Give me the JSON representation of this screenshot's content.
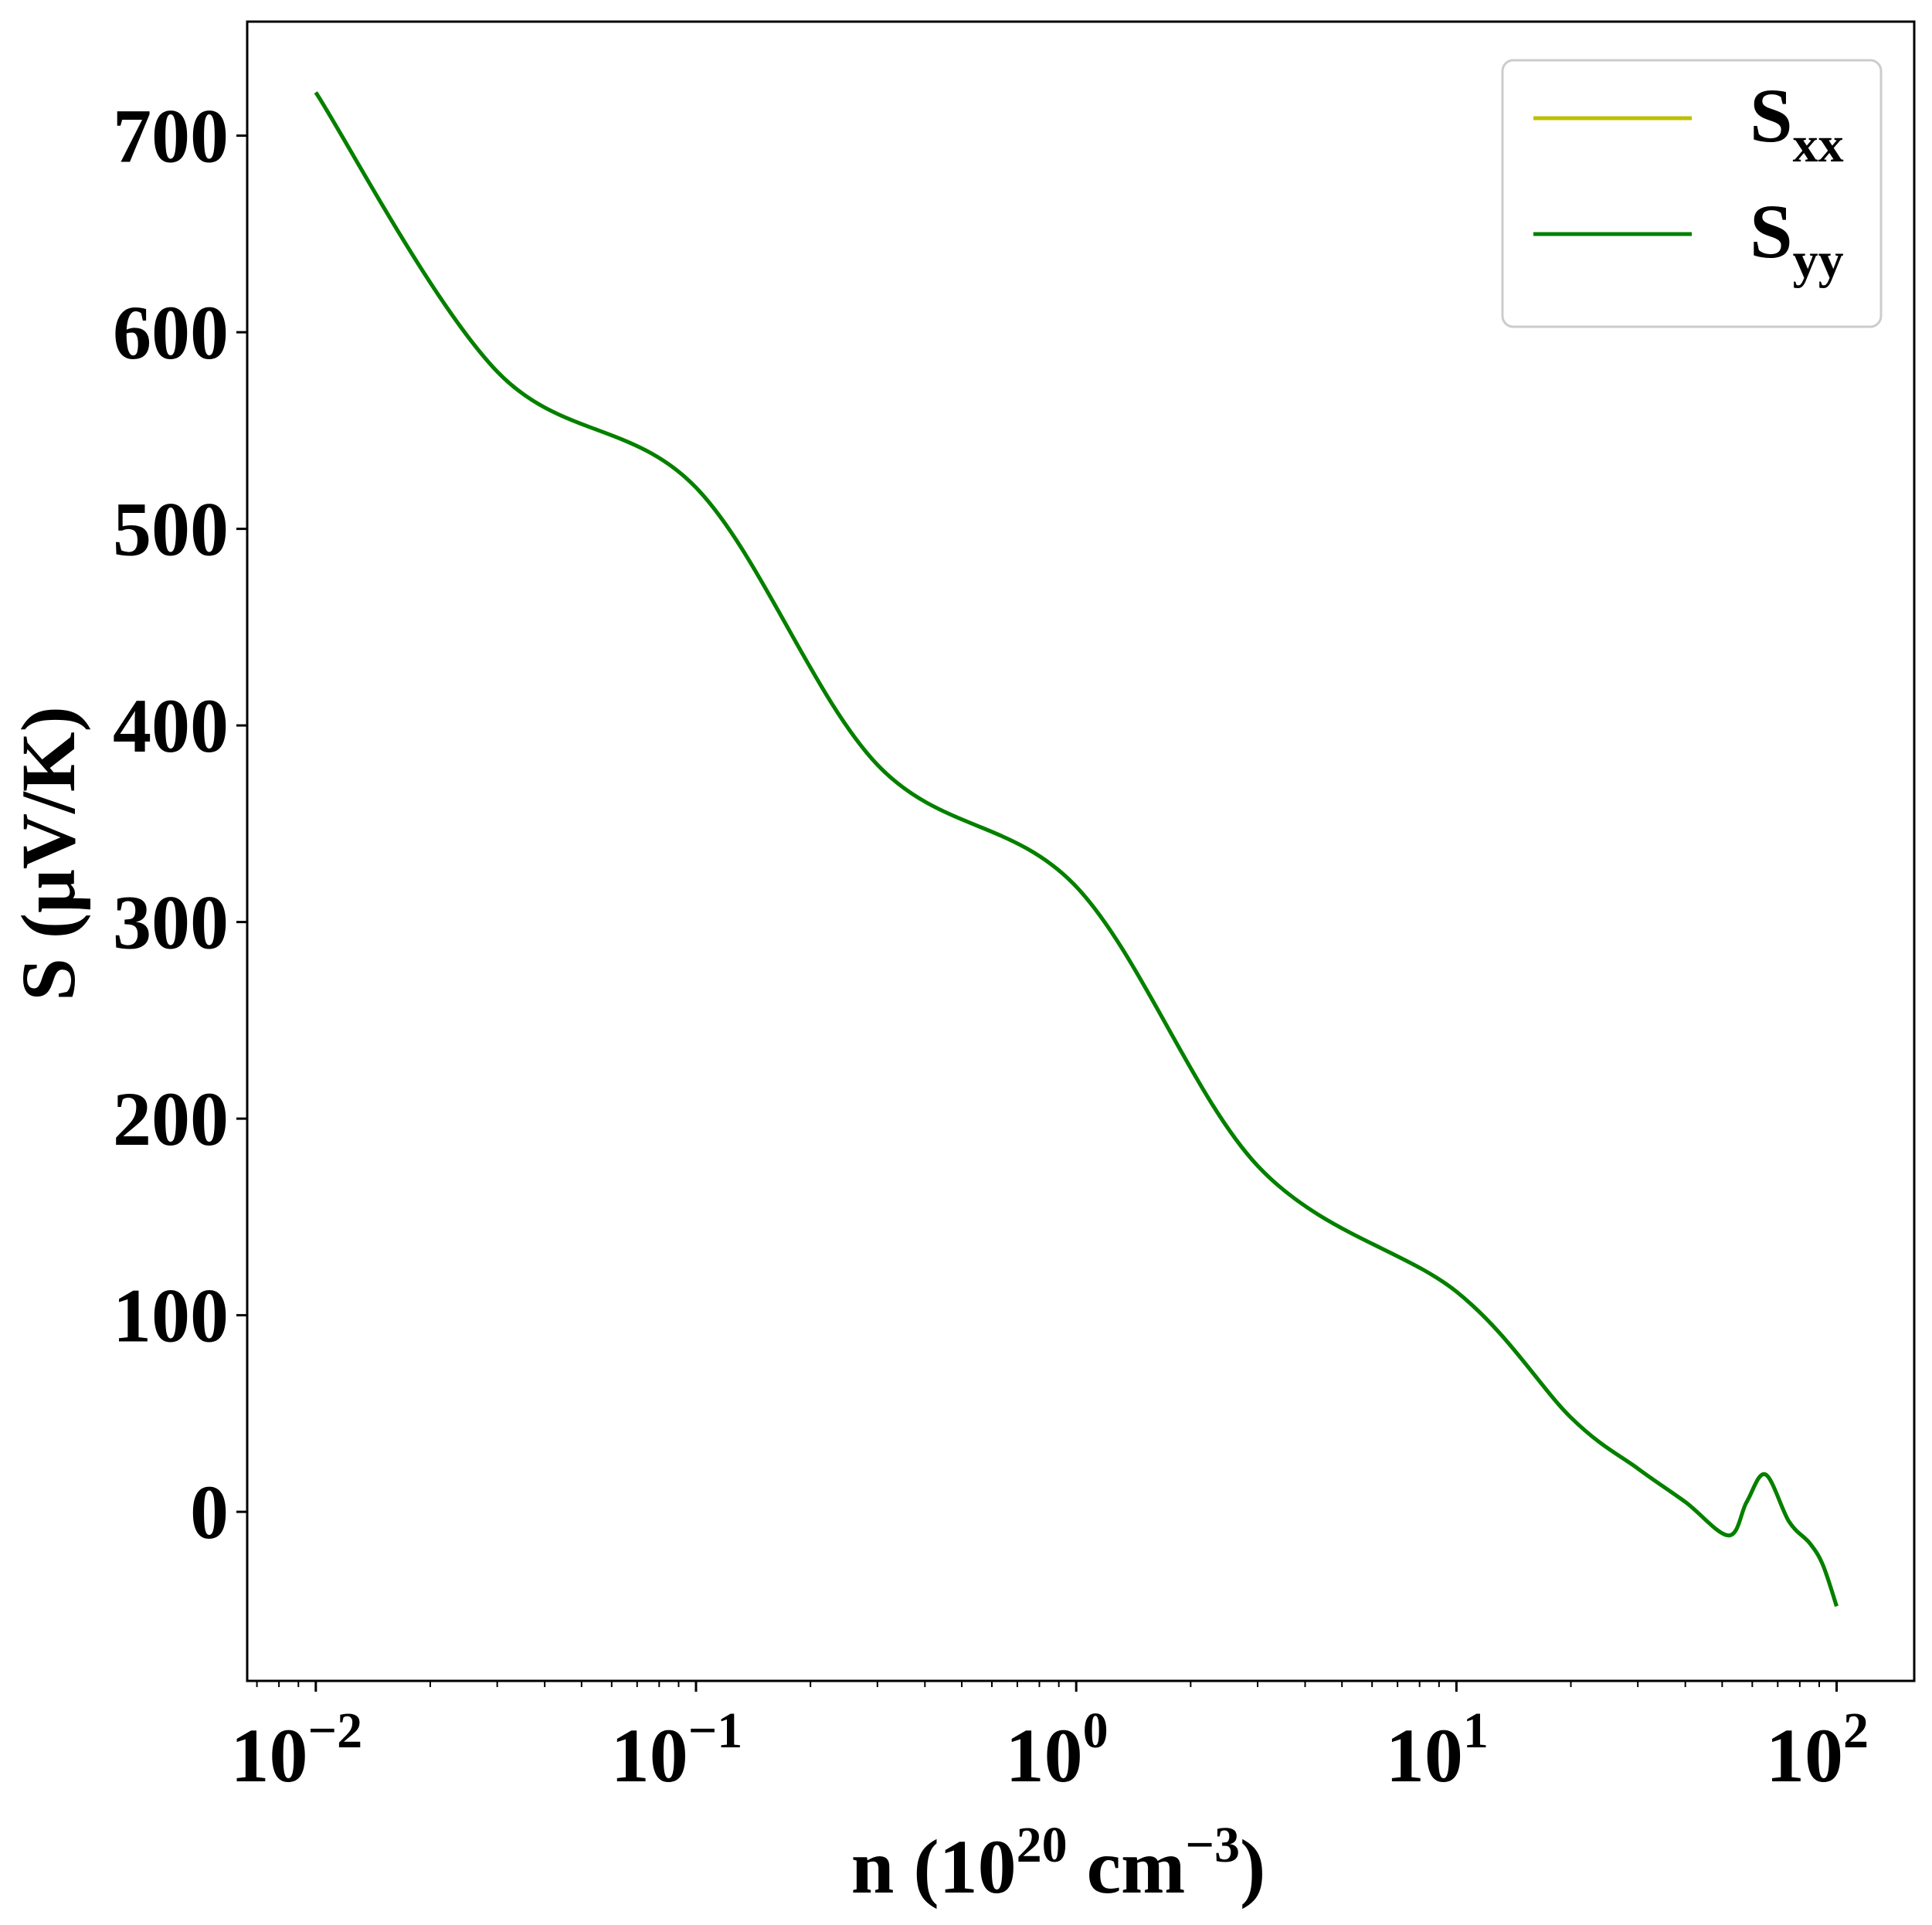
{
  "chart_data": {
    "type": "line",
    "xlabel": {
      "prefix": "n (10",
      "sup1": "20",
      "mid": " cm",
      "sup2": "−3",
      "suffix": ")"
    },
    "ylabel": "S (μV/K)",
    "xscale": "log",
    "xlim": [
      0.0066,
      160
    ],
    "ylim": [
      -86,
      758
    ],
    "grid": false,
    "legend_position": "top-right",
    "x_ticks": [
      {
        "value": 0.01,
        "base": "10",
        "exp": "−2"
      },
      {
        "value": 0.1,
        "base": "10",
        "exp": "−1"
      },
      {
        "value": 1,
        "base": "10",
        "exp": "0"
      },
      {
        "value": 10,
        "base": "10",
        "exp": "1"
      },
      {
        "value": 100,
        "base": "10",
        "exp": "2"
      }
    ],
    "y_ticks": [
      0,
      100,
      200,
      300,
      400,
      500,
      600,
      700
    ],
    "series": [
      {
        "label_base": "S",
        "label_sub": "xx",
        "color": "#bfbf00",
        "x": [
          0.01,
          0.03,
          0.1,
          0.3,
          1,
          3,
          10,
          20,
          30,
          40,
          52,
          58,
          65,
          75,
          85,
          92,
          100
        ],
        "y": [
          722,
          580,
          521,
          380,
          318,
          176,
          112,
          48,
          22,
          5,
          -12,
          5,
          19,
          -5,
          -16,
          -27,
          -48
        ]
      },
      {
        "label_base": "S",
        "label_sub": "yy",
        "color": "#008000",
        "x": [
          0.01,
          0.03,
          0.1,
          0.3,
          1,
          3,
          10,
          20,
          30,
          40,
          52,
          58,
          65,
          75,
          85,
          92,
          100
        ],
        "y": [
          722,
          580,
          521,
          380,
          318,
          176,
          112,
          48,
          22,
          5,
          -12,
          5,
          19,
          -5,
          -16,
          -27,
          -48
        ]
      }
    ]
  }
}
